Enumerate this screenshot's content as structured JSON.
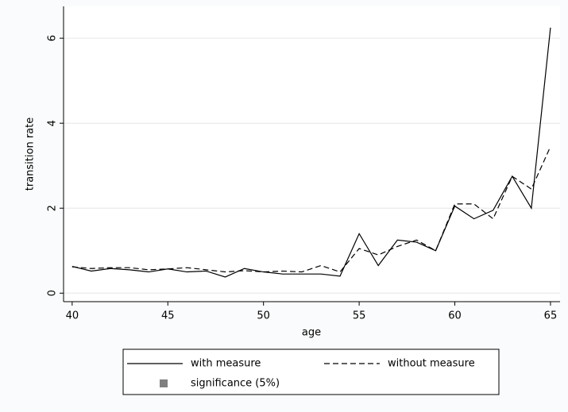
{
  "chart_data": {
    "type": "line",
    "x_label": "age",
    "y_label": "transition rate",
    "x": [
      40,
      41,
      42,
      43,
      44,
      45,
      46,
      47,
      48,
      49,
      50,
      51,
      52,
      53,
      54,
      55,
      56,
      57,
      58,
      59,
      60,
      61,
      62,
      63,
      64,
      65
    ],
    "series": [
      {
        "name": "with measure",
        "color": "#000000",
        "dash": "solid",
        "values": [
          0.63,
          0.52,
          0.58,
          0.55,
          0.5,
          0.57,
          0.5,
          0.52,
          0.38,
          0.58,
          0.5,
          0.45,
          0.45,
          0.45,
          0.4,
          1.4,
          0.65,
          1.25,
          1.2,
          1.0,
          2.05,
          1.75,
          1.95,
          2.75,
          2.0,
          6.25
        ]
      },
      {
        "name": "without measure",
        "color": "#000000",
        "dash": "dashed",
        "values": [
          0.62,
          0.58,
          0.6,
          0.6,
          0.55,
          0.57,
          0.6,
          0.55,
          0.5,
          0.53,
          0.5,
          0.52,
          0.5,
          0.65,
          0.5,
          1.05,
          0.9,
          1.1,
          1.25,
          1.0,
          2.1,
          2.1,
          1.75,
          2.75,
          2.45,
          3.45
        ]
      },
      {
        "name": "significance (5%)",
        "color": "#808080",
        "marker": "square",
        "values": [
          null,
          null,
          null,
          null,
          null,
          null,
          null,
          null,
          null,
          null,
          null,
          null,
          null,
          null,
          null,
          null,
          null,
          null,
          null,
          null,
          null,
          null,
          null,
          null,
          null,
          null
        ]
      }
    ],
    "xlim": [
      39.55,
      65.5
    ],
    "ylim": [
      -0.2,
      6.75
    ],
    "xticks": [
      40,
      45,
      50,
      55,
      60,
      65
    ],
    "yticks": [
      0,
      2,
      4,
      6
    ],
    "grid": true
  }
}
